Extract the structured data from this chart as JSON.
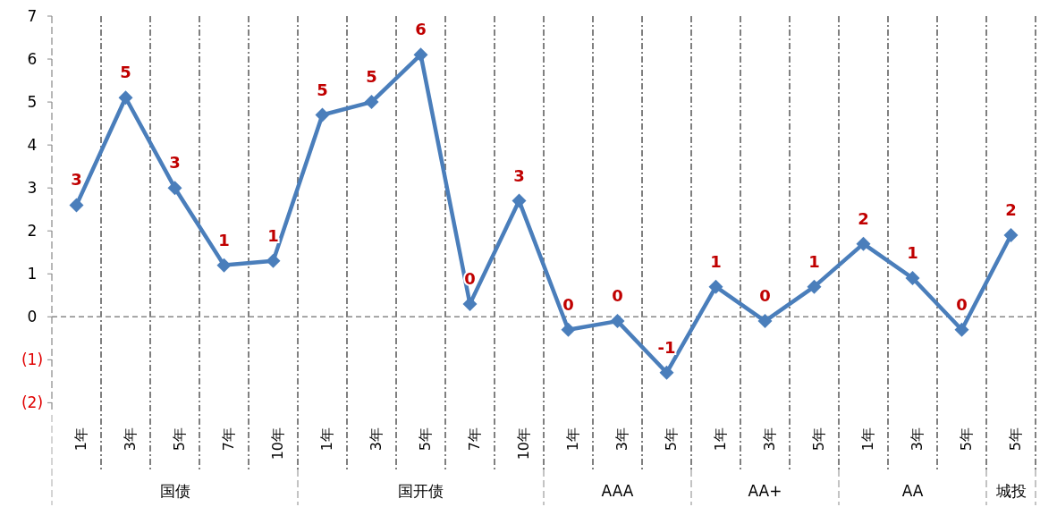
{
  "chart_data": {
    "type": "line",
    "categories": [
      "1年",
      "3年",
      "5年",
      "7年",
      "10年",
      "1年",
      "3年",
      "5年",
      "7年",
      "10年",
      "1年",
      "3年",
      "5年",
      "1年",
      "3年",
      "5年",
      "1年",
      "3年",
      "5年",
      "5年"
    ],
    "series": [
      {
        "color": "#4a7ebb",
        "values": [
          2.6,
          5.1,
          3.0,
          1.2,
          1.3,
          4.7,
          5.0,
          6.1,
          0.3,
          2.7,
          -0.3,
          -0.1,
          -1.3,
          0.7,
          -0.1,
          0.7,
          1.7,
          0.9,
          -0.3,
          1.9
        ],
        "value_labels": [
          "3",
          "5",
          "3",
          "1",
          "1",
          "5",
          "5",
          "6",
          "0",
          "3",
          "0",
          "0",
          "-1",
          "1",
          "0",
          "1",
          "2",
          "1",
          "0",
          "2"
        ]
      }
    ],
    "annotations": [
      "国债",
      "国开债",
      "AAA",
      "AA+",
      "AA",
      "城投"
    ],
    "ylim": [
      -2.2,
      7
    ],
    "yticks": [
      {
        "value": -2,
        "label": "(2)"
      },
      {
        "value": -1,
        "label": "(1)"
      },
      0,
      1,
      2,
      3,
      4,
      5,
      6,
      7
    ],
    "ref_lines": [
      {
        "axis": "y",
        "value": 0,
        "color": "#888888",
        "line_style": "dashed"
      }
    ],
    "marker": "diamond",
    "line_style": "solid"
  }
}
